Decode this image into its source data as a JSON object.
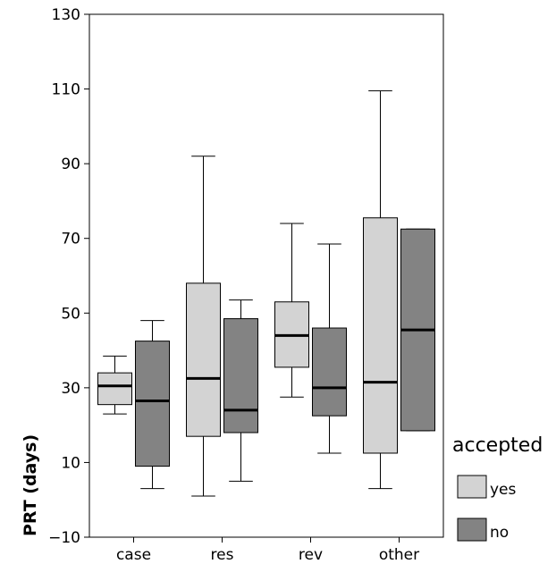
{
  "chart_data": {
    "type": "boxplot",
    "ylabel": "PRT (days)",
    "ylim": [
      -10,
      130
    ],
    "yticks": [
      -10,
      10,
      30,
      50,
      70,
      90,
      110,
      130
    ],
    "categories": [
      "case",
      "res",
      "rev",
      "other"
    ],
    "legend": {
      "title": "accepted",
      "placement": "right"
    },
    "series": [
      {
        "name": "yes",
        "color": "#d3d3d3",
        "boxes": [
          {
            "whisker_low": 23,
            "q1": 25.5,
            "median": 30.5,
            "q3": 34,
            "whisker_high": 38.5
          },
          {
            "whisker_low": 1,
            "q1": 17,
            "median": 32.5,
            "q3": 58,
            "whisker_high": 92
          },
          {
            "whisker_low": 27.5,
            "q1": 35.5,
            "median": 44,
            "q3": 53,
            "whisker_high": 74
          },
          {
            "whisker_low": 3,
            "q1": 12.5,
            "median": 31.5,
            "q3": 75.5,
            "whisker_high": 109.5
          }
        ]
      },
      {
        "name": "no",
        "color": "#838383",
        "boxes": [
          {
            "whisker_low": 3,
            "q1": 9,
            "median": 26.5,
            "q3": 42.5,
            "whisker_high": 48
          },
          {
            "whisker_low": 5,
            "q1": 18,
            "median": 24,
            "q3": 48.5,
            "whisker_high": 53.5
          },
          {
            "whisker_low": 12.5,
            "q1": 22.5,
            "median": 30,
            "q3": 46,
            "whisker_high": 68.5
          },
          {
            "whisker_low": 18.5,
            "q1": 18.5,
            "median": 45.5,
            "q3": 72.5,
            "whisker_high": 72.5
          }
        ]
      }
    ]
  }
}
